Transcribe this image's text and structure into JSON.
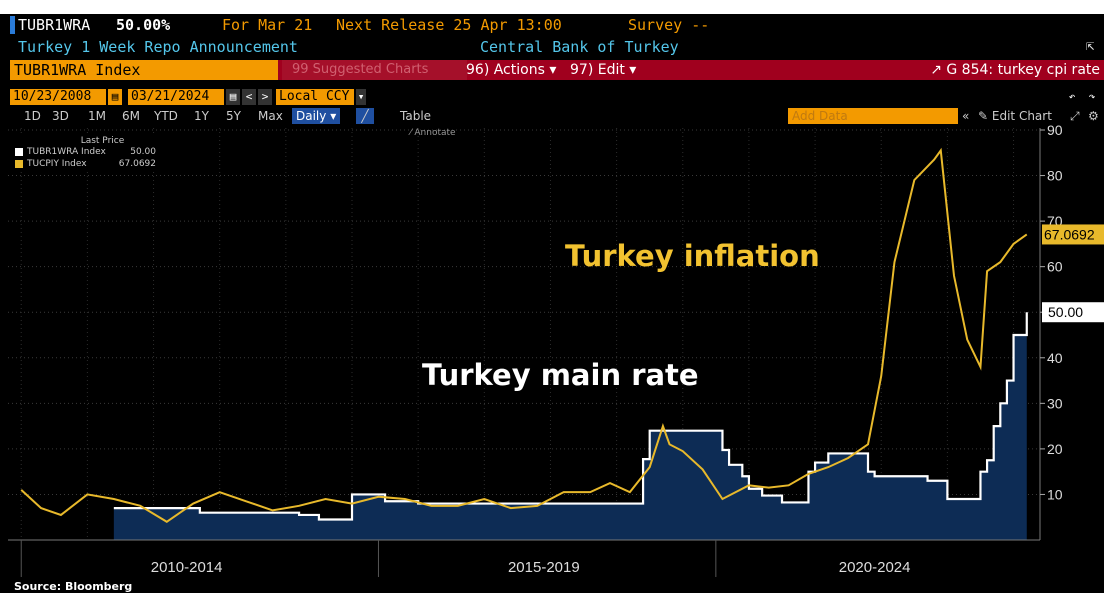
{
  "header": {
    "ticker": "TUBR1WRA",
    "last_value": "50.00%",
    "for_date": "For Mar 21",
    "next_release": "Next Release 25 Apr 13:00",
    "survey": "Survey --",
    "description": "Turkey 1 Week Repo Announcement",
    "source_org": "Central Bank of Turkey"
  },
  "toolbar": {
    "security": "TUBR1WRA Index",
    "suggested": "99 Suggested Charts",
    "actions": "96) Actions",
    "edit": "97) Edit",
    "graph_title": "G 854: turkey cpi rate",
    "start_date": "10/23/2008",
    "end_date": "03/21/2024",
    "currency": "Local CCY",
    "ranges": [
      "1D",
      "3D",
      "1M",
      "6M",
      "YTD",
      "1Y",
      "5Y",
      "Max"
    ],
    "frequency": "Daily",
    "table_label": "Table",
    "add_data": "Add Data",
    "edit_chart": "Edit Chart",
    "annotate": "Annotate"
  },
  "colors": {
    "background": "#000000",
    "rate_line": "#ffffff",
    "rate_fill": "#0d2c55",
    "cpi_line": "#e8b92b",
    "accent_orange": "#f39a00",
    "bar_red": "#a0001e",
    "header_blue": "#54c6ea"
  },
  "source": "Source: Bloomberg",
  "chart_data": {
    "type": "line",
    "title": "",
    "ylim": [
      0,
      90
    ],
    "yticks": [
      10,
      20,
      30,
      40,
      50,
      60,
      70,
      80,
      90
    ],
    "x_period_labels": [
      "2010-2014",
      "2015-2019",
      "2020-2024"
    ],
    "legend_header": "Last Price",
    "annotations": {
      "cpi_label": "Turkey inflation",
      "rate_label": "Turkey main rate",
      "cpi_last_tag": "67.0692",
      "rate_last_tag": "50.00"
    },
    "series": [
      {
        "name": "TUBR1WRA Index",
        "legend_value": "50.00",
        "color": "#ffffff",
        "fill": true,
        "x": [
          2010.4,
          2011.5,
          2011.7,
          2012.0,
          2013.2,
          2013.5,
          2014.0,
          2014.1,
          2014.5,
          2015.0,
          2016.5,
          2017.0,
          2018.0,
          2018.4,
          2018.5,
          2018.7,
          2019.6,
          2019.7,
          2019.9,
          2020.0,
          2020.2,
          2020.5,
          2020.9,
          2021.0,
          2021.2,
          2021.8,
          2021.9,
          2022.5,
          2022.7,
          2023.0,
          2023.4,
          2023.5,
          2023.6,
          2023.7,
          2023.8,
          2023.9,
          2024.0,
          2024.2
        ],
        "y": [
          7,
          7,
          6,
          6,
          5.5,
          4.5,
          10,
          10,
          8.5,
          8,
          8,
          8,
          8,
          17.75,
          24,
          24,
          19.75,
          16.5,
          14,
          11.25,
          9.75,
          8.25,
          15,
          17,
          19,
          15,
          14,
          14,
          13,
          9,
          9,
          15,
          17.5,
          25,
          30,
          35,
          45,
          50
        ]
      },
      {
        "name": "TUCPIY Index",
        "legend_value": "67.0692",
        "color": "#e8b92b",
        "fill": false,
        "x": [
          2009.0,
          2009.3,
          2009.6,
          2010.0,
          2010.4,
          2010.8,
          2011.2,
          2011.6,
          2012.0,
          2012.4,
          2012.8,
          2013.2,
          2013.6,
          2014.0,
          2014.4,
          2014.8,
          2015.2,
          2015.6,
          2016.0,
          2016.4,
          2016.8,
          2017.2,
          2017.6,
          2017.9,
          2018.2,
          2018.5,
          2018.7,
          2018.8,
          2019.0,
          2019.3,
          2019.6,
          2019.8,
          2020.0,
          2020.3,
          2020.6,
          2020.9,
          2021.2,
          2021.5,
          2021.8,
          2022.0,
          2022.2,
          2022.5,
          2022.8,
          2022.9,
          2023.1,
          2023.3,
          2023.5,
          2023.6,
          2023.8,
          2024.0,
          2024.2
        ],
        "y": [
          11,
          7,
          5.5,
          10,
          9,
          7.5,
          4,
          8,
          10.5,
          8.5,
          6.5,
          7.5,
          9,
          8,
          9.5,
          9,
          7.5,
          7.5,
          9,
          7,
          7.5,
          10.5,
          10.5,
          12.5,
          10.5,
          16,
          25,
          21,
          19.5,
          15.5,
          9,
          10.5,
          12,
          11.5,
          12,
          14.5,
          16,
          18,
          21,
          36,
          61,
          79,
          83.5,
          85.5,
          58,
          44,
          38,
          59,
          61,
          65,
          67.0692
        ]
      }
    ]
  }
}
